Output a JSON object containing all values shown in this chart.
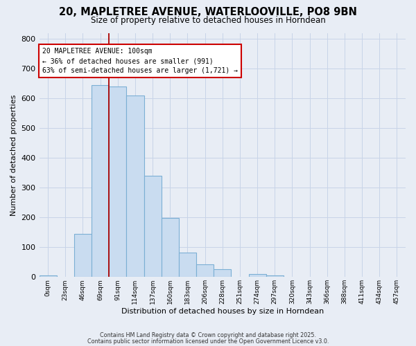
{
  "title": "20, MAPLETREE AVENUE, WATERLOOVILLE, PO8 9BN",
  "subtitle": "Size of property relative to detached houses in Horndean",
  "xlabel": "Distribution of detached houses by size in Horndean",
  "ylabel": "Number of detached properties",
  "bin_labels": [
    "0sqm",
    "23sqm",
    "46sqm",
    "69sqm",
    "91sqm",
    "114sqm",
    "137sqm",
    "160sqm",
    "183sqm",
    "206sqm",
    "228sqm",
    "251sqm",
    "274sqm",
    "297sqm",
    "320sqm",
    "343sqm",
    "366sqm",
    "388sqm",
    "411sqm",
    "434sqm",
    "457sqm"
  ],
  "bar_heights": [
    5,
    0,
    145,
    645,
    640,
    610,
    340,
    198,
    83,
    43,
    26,
    0,
    10,
    5,
    0,
    0,
    0,
    0,
    0,
    0,
    0
  ],
  "bar_color": "#c9dcf0",
  "bar_edge_color": "#7bafd4",
  "vline_x": 4,
  "vline_color": "#aa0000",
  "annotation_title": "20 MAPLETREE AVENUE: 100sqm",
  "annotation_line1": "← 36% of detached houses are smaller (991)",
  "annotation_line2": "63% of semi-detached houses are larger (1,721) →",
  "annotation_box_color": "#cc0000",
  "ylim": [
    0,
    820
  ],
  "yticks": [
    0,
    100,
    200,
    300,
    400,
    500,
    600,
    700,
    800
  ],
  "grid_color": "#c8d4e8",
  "background_color": "#e8edf5",
  "footer1": "Contains HM Land Registry data © Crown copyright and database right 2025.",
  "footer2": "Contains public sector information licensed under the Open Government Licence v3.0."
}
